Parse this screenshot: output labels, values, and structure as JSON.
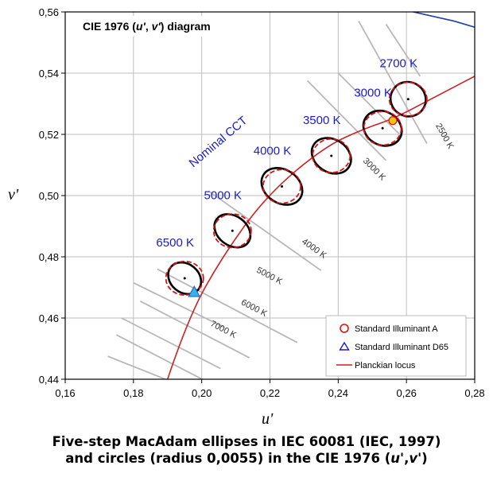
{
  "chart_data": {
    "type": "scatter",
    "title": "CIE 1976 (u', v') diagram",
    "title_prefix": "CIE 1976 (",
    "title_u": "u'",
    "title_sep": ", ",
    "title_v": "v'",
    "title_suffix": ") diagram",
    "xlabel": "u'",
    "ylabel": "v'",
    "xlim": [
      0.16,
      0.28
    ],
    "ylim": [
      0.44,
      0.56
    ],
    "xticks": [
      0.16,
      0.18,
      0.2,
      0.22,
      0.24,
      0.26,
      0.28
    ],
    "yticks": [
      0.44,
      0.46,
      0.48,
      0.5,
      0.52,
      0.54,
      0.56
    ],
    "xtick_labels": [
      "0,16",
      "0,18",
      "0,20",
      "0,22",
      "0,24",
      "0,26",
      "0,28"
    ],
    "ytick_labels": [
      "0,44",
      "0,46",
      "0,48",
      "0,50",
      "0,52",
      "0,54",
      "0,56"
    ],
    "grid": true,
    "nominal_cct_label": "Nominal CCT",
    "nominal_points": [
      {
        "label": "6500 K",
        "u": 0.195,
        "v": 0.473,
        "a": 0.0042,
        "b": 0.0058,
        "tilt": -50,
        "r": 0.0055
      },
      {
        "label": "5000 K",
        "u": 0.209,
        "v": 0.4885,
        "a": 0.0043,
        "b": 0.0064,
        "tilt": -53,
        "r": 0.0055
      },
      {
        "label": "4000 K",
        "u": 0.2235,
        "v": 0.503,
        "a": 0.0049,
        "b": 0.0071,
        "tilt": -57,
        "r": 0.0055
      },
      {
        "label": "3500 K",
        "u": 0.238,
        "v": 0.513,
        "a": 0.0048,
        "b": 0.0068,
        "tilt": -57,
        "r": 0.0055
      },
      {
        "label": "3000 K",
        "u": 0.253,
        "v": 0.522,
        "a": 0.0049,
        "b": 0.0065,
        "tilt": -60,
        "r": 0.0055
      },
      {
        "label": "2700 K",
        "u": 0.2605,
        "v": 0.5315,
        "a": 0.005,
        "b": 0.0058,
        "tilt": -60,
        "r": 0.0055
      }
    ],
    "planckian_locus": [
      [
        0.19,
        0.44
      ],
      [
        0.196,
        0.46
      ],
      [
        0.206,
        0.48
      ],
      [
        0.219,
        0.5
      ],
      [
        0.236,
        0.516
      ],
      [
        0.248,
        0.522
      ],
      [
        0.256,
        0.525
      ],
      [
        0.268,
        0.532
      ],
      [
        0.28,
        0.539
      ]
    ],
    "spectrum_locus": [
      [
        0.262,
        0.56
      ],
      [
        0.274,
        0.557
      ],
      [
        0.28,
        0.555
      ]
    ],
    "isotemperature_lines": [
      {
        "label": "7000 K",
        "from": [
          0.175,
          0.4545
        ],
        "to": [
          0.201,
          0.4395
        ]
      },
      {
        "label": "6000 K",
        "from": [
          0.182,
          0.4655
        ],
        "to": [
          0.214,
          0.447
        ]
      },
      {
        "label": "5000 K",
        "from": [
          0.187,
          0.476
        ],
        "to": [
          0.228,
          0.452
        ]
      },
      {
        "label": "4000 K",
        "from": [
          0.202,
          0.5015
        ],
        "to": [
          0.235,
          0.4755
        ]
      },
      {
        "label": "3000 K",
        "from": [
          0.231,
          0.5375
        ],
        "to": [
          0.254,
          0.5115
        ]
      },
      {
        "label": "2500 K",
        "from": [
          0.246,
          0.557
        ],
        "to": [
          0.266,
          0.517
        ]
      }
    ],
    "extra_isotemperature_lines": [
      {
        "from": [
          0.1725,
          0.4475
        ],
        "to": [
          0.1905,
          0.4395
        ]
      },
      {
        "from": [
          0.1765,
          0.46
        ],
        "to": [
          0.2055,
          0.4435
        ]
      },
      {
        "from": [
          0.18,
          0.4715
        ],
        "to": [
          0.2065,
          0.457
        ]
      },
      {
        "from": [
          0.24,
          0.54
        ],
        "to": [
          0.258,
          0.52
        ]
      },
      {
        "from": [
          0.254,
          0.556
        ],
        "to": [
          0.264,
          0.539
        ]
      }
    ],
    "isotemperature_label_positions": [
      {
        "label": "7000 K",
        "u": 0.206,
        "v": 0.4555
      },
      {
        "label": "6000 K",
        "u": 0.215,
        "v": 0.4625
      },
      {
        "label": "5000 K",
        "u": 0.2195,
        "v": 0.473
      },
      {
        "label": "4000 K",
        "u": 0.2325,
        "v": 0.482
      },
      {
        "label": "3000 K",
        "u": 0.25,
        "v": 0.508
      },
      {
        "label": "2500 K",
        "u": 0.2705,
        "v": 0.519
      }
    ],
    "standard_illuminant_a": {
      "u": 0.256,
      "v": 0.5245
    },
    "standard_illuminant_d65": {
      "u": 0.1978,
      "v": 0.4683
    },
    "legend": [
      {
        "marker": "circle",
        "label": "Standard Illuminant A",
        "color": "#dd1111"
      },
      {
        "marker": "triangle",
        "label": "Standard Illuminant D65",
        "color": "#1a1acc"
      },
      {
        "marker": "line",
        "label": "Planckian locus",
        "color": "#cc2222"
      }
    ]
  },
  "caption": {
    "line1": "Five-step MacAdam ellipses in IEC 60081 (IEC, 1997)",
    "line2_prefix": "and circles (radius 0,0055) in the CIE 1976 (",
    "line2_u": "u'",
    "line2_sep": ",",
    "line2_v": "v'",
    "line2_suffix": ")"
  },
  "colors": {
    "ellipse": "#000000",
    "circle": "#dd1111",
    "planckian": "#cc2222",
    "spectrum_locus": "#1f3ea8",
    "isotemperature": "#b8b8b8",
    "grid": "#bdbdbd",
    "cct_text": "#1a1acc",
    "illuminant_a_fill": "#f4c20d",
    "d65_fill": "#33b5e5",
    "d65_stroke": "#1a5bd6"
  }
}
